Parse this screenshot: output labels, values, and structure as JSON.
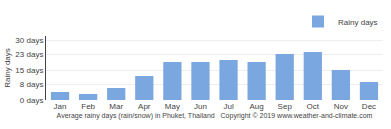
{
  "chart_data": {
    "type": "bar",
    "categories": [
      "Jan",
      "Feb",
      "Mar",
      "Apr",
      "May",
      "Jun",
      "Jul",
      "Aug",
      "Sep",
      "Oct",
      "Nov",
      "Dec"
    ],
    "series": [
      {
        "name": "Rainy days",
        "color": "#7ba7e0",
        "values": [
          4,
          3,
          6,
          12,
          19,
          19,
          20,
          19,
          23,
          24,
          15,
          9
        ]
      }
    ],
    "ylabel": "Rainy days",
    "xlabel": "Average rainy days (rain/snow) in Phuket, Thailand   Copyright © 2019 www.weather-and-climate.com",
    "ylim": [
      0,
      32
    ],
    "yticks": [
      {
        "value": 0,
        "label": "0 days"
      },
      {
        "value": 8,
        "label": "8 days"
      },
      {
        "value": 15,
        "label": "15 days"
      },
      {
        "value": 23,
        "label": "23 days"
      },
      {
        "value": 30,
        "label": "30 days"
      }
    ],
    "grid": true,
    "legend": "upper right"
  }
}
